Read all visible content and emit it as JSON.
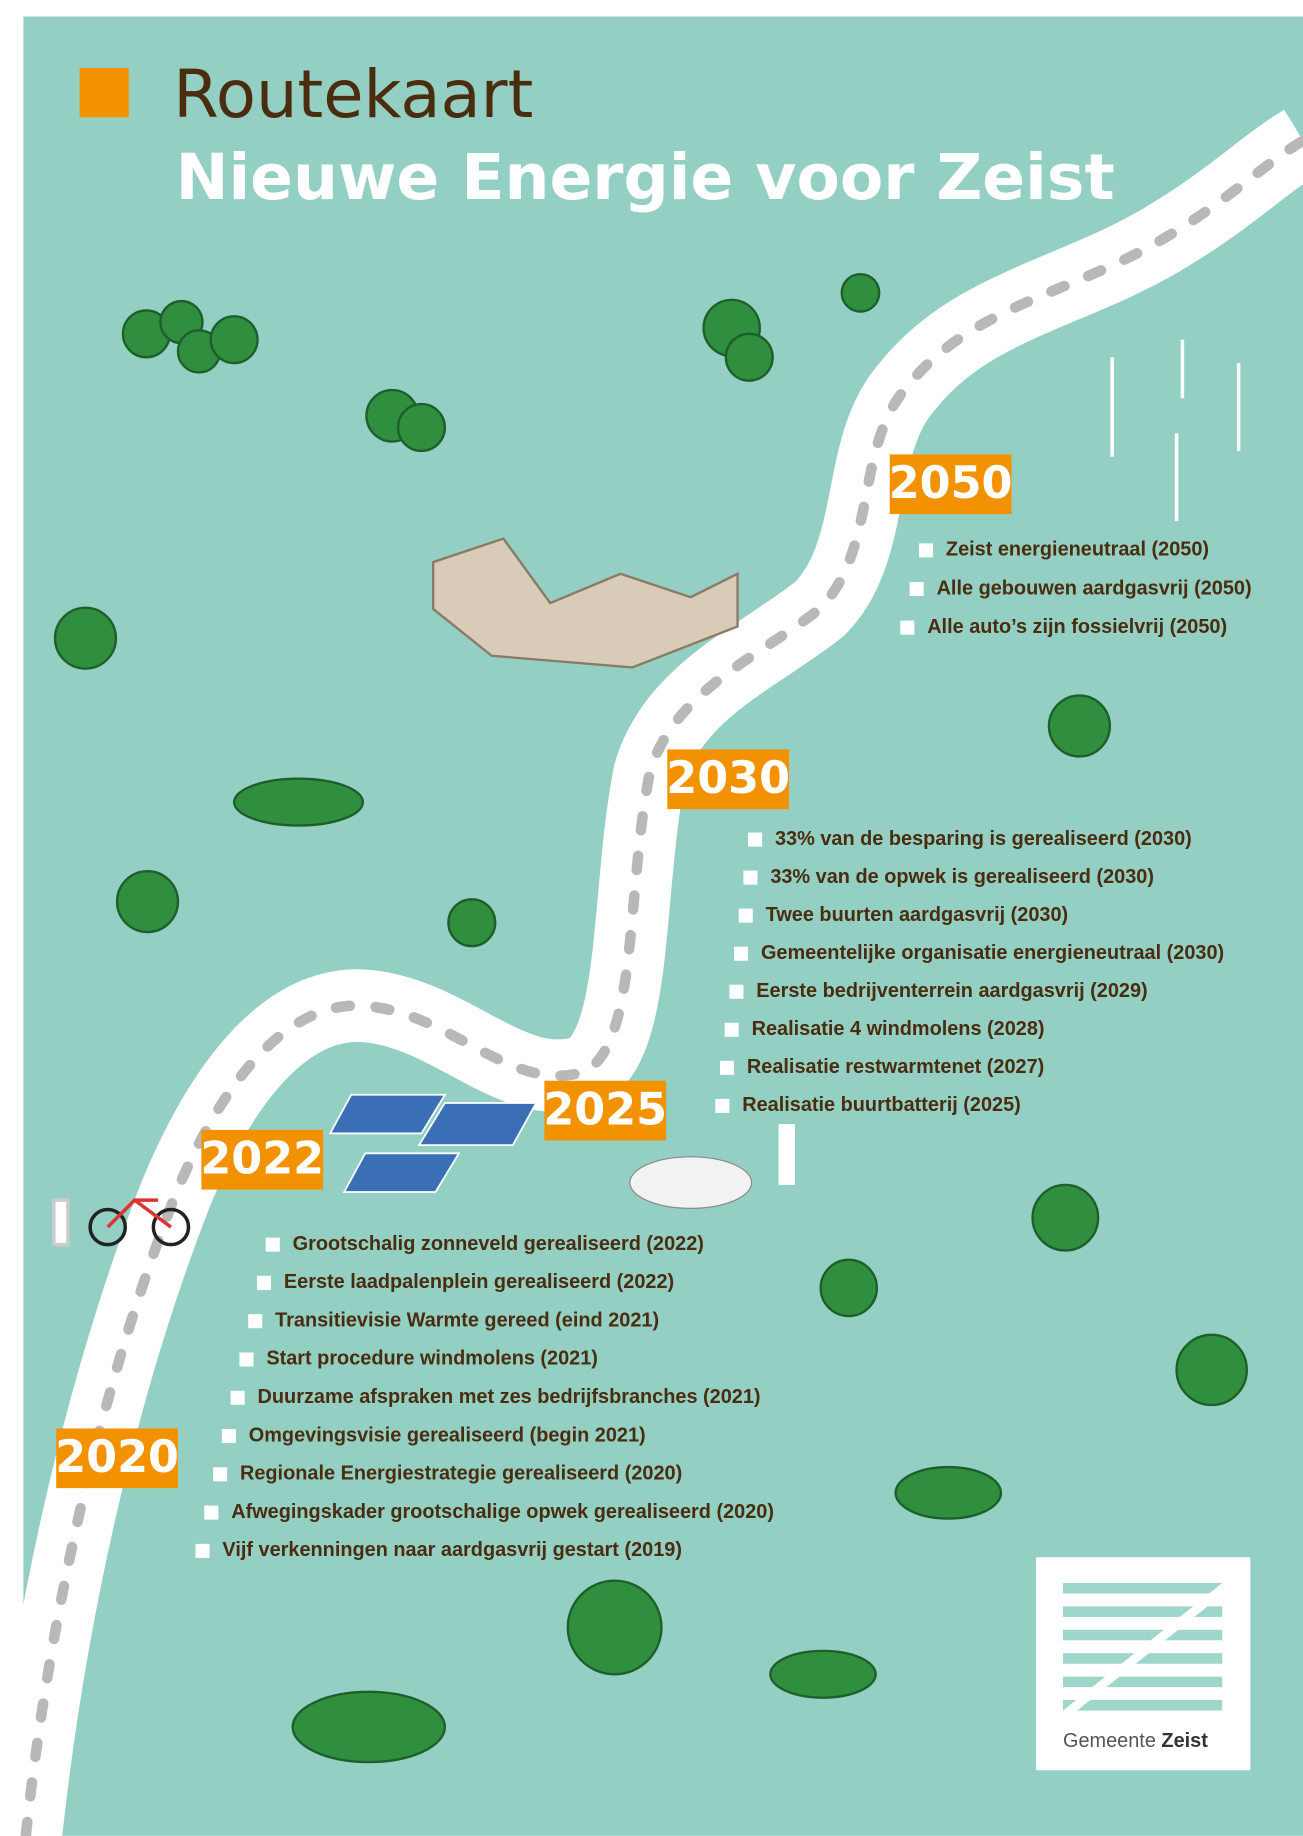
{
  "header": {
    "title": "Routekaart",
    "subtitle": "Nieuwe Energie voor Zeist"
  },
  "year_labels": [
    "2050",
    "2030",
    "2025",
    "2022",
    "2020"
  ],
  "lists": [
    [
      "Zeist energieneutraal (2050)",
      "Alle gebouwen aardgasvrij (2050)",
      "Alle auto’s zijn fossielvrij (2050)"
    ],
    [
      "33% van de besparing is gerealiseerd (2030)",
      "33% van de opwek is gerealiseerd (2030)",
      "Twee buurten aardgasvrij (2030)",
      "Gemeentelijke organisatie energieneutraal (2030)",
      "Eerste bedrijventerrein aardgasvrij (2029)",
      "Realisatie 4 windmolens (2028)",
      "Realisatie restwarmtenet (2027)",
      "Realisatie buurtbatterij (2025)"
    ],
    [
      "Grootschalig zonneveld gerealiseerd (2022)",
      "Eerste laadpalenplein gerealiseerd (2022)",
      "Transitievisie Warmte gereed (eind 2021)",
      "Start procedure windmolens (2021)",
      "Duurzame afspraken met zes bedrijfsbranches (2021)",
      "Omgevingsvisie gerealiseerd (begin 2021)",
      "Regionale Energiestrategie gerealiseerd (2020)",
      "Afwegingskader grootschalige opwek gerealiseerd (2020)",
      "Vijf verkenningen naar aardgasvrij gestart (2019)"
    ]
  ],
  "logo": {
    "text": "Gemeente",
    "bold": "Zeist"
  }
}
